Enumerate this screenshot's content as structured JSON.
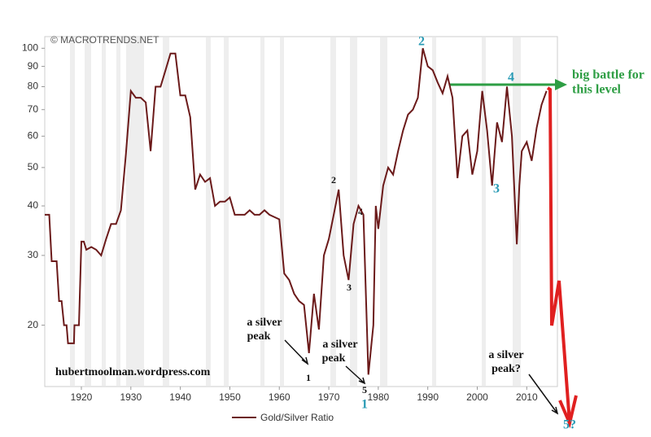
{
  "chart_data": {
    "type": "line",
    "watermark": "© MACROTRENDS.NET",
    "credit": "hubertmoolman.wordpress.com",
    "log_y": true,
    "xlim": [
      1912.6,
      2016.2
    ],
    "ylim": [
      14,
      107
    ],
    "xticks": [
      1920,
      1930,
      1940,
      1950,
      1960,
      1970,
      1980,
      1990,
      2000,
      2010
    ],
    "yticks": [
      20,
      30,
      40,
      50,
      60,
      70,
      80,
      90,
      100
    ],
    "series": [
      {
        "name": "Gold/Silver Ratio",
        "color": "#6b1a1a",
        "x": [
          1912.6,
          1913.5,
          1914,
          1915,
          1915.5,
          1916,
          1916.5,
          1917,
          1917.3,
          1918.5,
          1918.6,
          1919.5,
          1920,
          1920.5,
          1921,
          1922,
          1923,
          1924,
          1925,
          1926,
          1927,
          1928,
          1929,
          1930,
          1931,
          1932,
          1933,
          1934,
          1935,
          1936,
          1937,
          1938,
          1939,
          1940,
          1941,
          1942,
          1943,
          1944,
          1945,
          1946,
          1947,
          1948,
          1949,
          1950,
          1951,
          1953,
          1954,
          1955,
          1956,
          1957,
          1958,
          1960,
          1961,
          1962,
          1963,
          1964,
          1965,
          1966,
          1967,
          1968,
          1969,
          1970,
          1971,
          1972,
          1973,
          1974,
          1975,
          1976,
          1977,
          1978,
          1979,
          1979.5,
          1980,
          1981,
          1982,
          1983,
          1984,
          1985,
          1986,
          1987,
          1988,
          1989,
          1990,
          1991,
          1992,
          1993,
          1994,
          1995,
          1996,
          1997,
          1998,
          1999,
          2000,
          2001,
          2002,
          2003,
          2004,
          2005,
          2006,
          2007,
          2008,
          2008.5,
          2009,
          2010,
          2011,
          2012,
          2013,
          2014
        ],
        "values": [
          38,
          38,
          29,
          29,
          23,
          23,
          20,
          20,
          18,
          18,
          20,
          20,
          32.5,
          32.5,
          31,
          31.5,
          31,
          30,
          33,
          36,
          36,
          39,
          54,
          78,
          75,
          75,
          73,
          55,
          80,
          80,
          88,
          97,
          97,
          76,
          76,
          67,
          44,
          48,
          46,
          47,
          40,
          41,
          41,
          42,
          38,
          38,
          39,
          38,
          38,
          39,
          38,
          37,
          27,
          26,
          24,
          23,
          22.5,
          17,
          24,
          19.5,
          30,
          33,
          38,
          44,
          30,
          26,
          36,
          40,
          38,
          15,
          20,
          40,
          35,
          45,
          50,
          48,
          55,
          62,
          68,
          70,
          75,
          100,
          90,
          88,
          82,
          77,
          85,
          75,
          47,
          60,
          62,
          48,
          55,
          78,
          62,
          45,
          65,
          58,
          80,
          60,
          32,
          45,
          55,
          58,
          52,
          63,
          72,
          78
        ]
      }
    ],
    "annotations": [
      "big battle for",
      "this level",
      "2",
      "4",
      "3",
      "2",
      "3",
      "4",
      "1",
      "5",
      "1",
      "a silver",
      "peak",
      "a silver",
      "peak",
      "a silver",
      "peak?",
      "5?"
    ]
  }
}
